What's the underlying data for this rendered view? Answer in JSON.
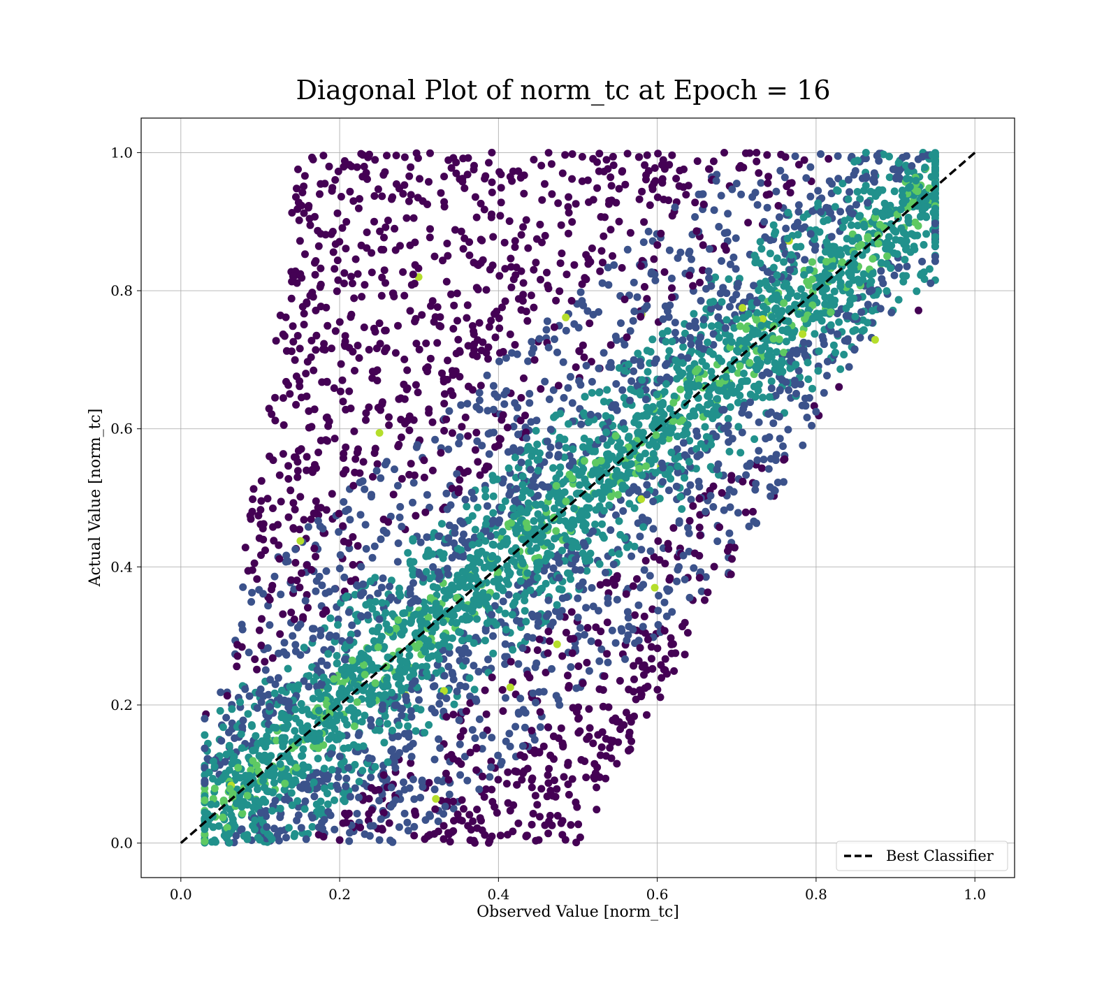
{
  "chart_data": {
    "type": "scatter",
    "title": "Diagonal Plot of norm_tc at Epoch = 16",
    "xlabel": "Observed Value [norm_tc]",
    "ylabel": "Actual Value [norm_tc]",
    "xlim": [
      -0.05,
      1.05
    ],
    "ylim": [
      -0.05,
      1.05
    ],
    "xticks": [
      "0.0",
      "0.2",
      "0.4",
      "0.6",
      "0.8",
      "1.0"
    ],
    "yticks": [
      "0.0",
      "0.2",
      "0.4",
      "0.6",
      "0.8",
      "1.0"
    ],
    "grid": true,
    "colormap": "viridis",
    "point_color_range": [
      "#440154",
      "#3b528b",
      "#21918c",
      "#5ec962",
      "#b5de2b"
    ],
    "observed_range": [
      0.03,
      0.95
    ],
    "actual_range": [
      0.0,
      1.0
    ],
    "reference_line": {
      "name": "Best Classifier",
      "x": [
        0.0,
        1.0
      ],
      "y": [
        0.0,
        1.0
      ],
      "style": "dashed",
      "color": "#000000"
    },
    "legend": {
      "entries": [
        "Best Classifier"
      ],
      "position": "lower-right"
    }
  }
}
